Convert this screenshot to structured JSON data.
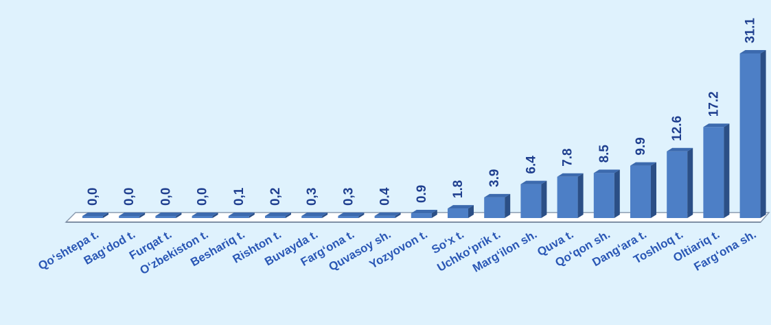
{
  "chart_data": {
    "type": "bar",
    "categories": [
      "Qo‘shtepa t.",
      "Bag‘dod t.",
      "Furqat t.",
      "O‘zbekiston t.",
      "Beshariq t.",
      "Rishton t.",
      "Buvayda t.",
      "Farg‘ona t.",
      "Quvasoy sh.",
      "Yozyovon t.",
      "So‘x t.",
      "Uchko‘prik t.",
      "Marg‘ilon sh.",
      "Quva t.",
      "Qo‘qon sh.",
      "Dang‘ara t.",
      "Toshloq t.",
      "Oltiariq t.",
      "Farg‘ona sh."
    ],
    "values": [
      0.0,
      0.0,
      0.0,
      0.0,
      0.1,
      0.2,
      0.3,
      0.3,
      0.4,
      0.9,
      1.8,
      3.9,
      6.4,
      7.8,
      8.5,
      9.9,
      12.6,
      17.2,
      31.1
    ],
    "value_labels": [
      "0,0",
      "0,0",
      "0,0",
      "0,0",
      "0,1",
      "0,2",
      "0,3",
      "0,3",
      "0.4",
      "0.9",
      "1.8",
      "3.9",
      "6.4",
      "7.8",
      "8.5",
      "9.9",
      "12.6",
      "17.2",
      "31.1"
    ],
    "title": "",
    "xlabel": "",
    "ylabel": "",
    "ylim": [
      0,
      31.1
    ],
    "grid": false,
    "legend": "none",
    "colors": {
      "bar_front": "#4d7fc6",
      "bar_side": "#2b4f86",
      "bar_top": "#3c6aae",
      "floor": "#ffffff",
      "floor_edge": "#8a9bb0",
      "value_text": "#1f3f8f",
      "category_text": "#2a57b5",
      "background": "#dff2fd"
    }
  }
}
